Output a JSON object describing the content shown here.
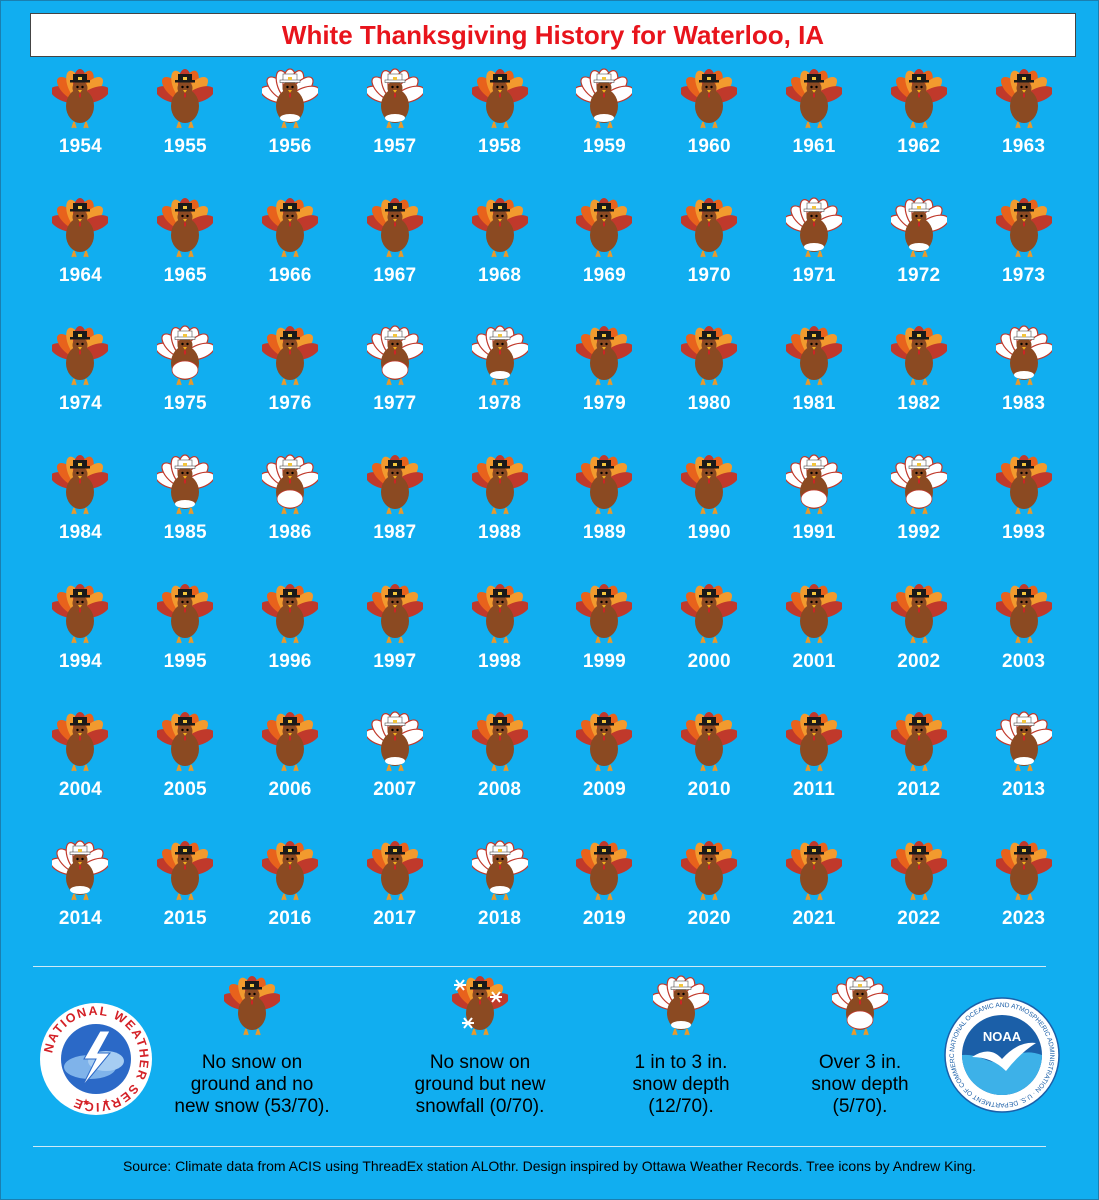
{
  "title": "White Thanksgiving History for Waterloo, IA",
  "years": [
    {
      "year": "1954",
      "category": "none"
    },
    {
      "year": "1955",
      "category": "none"
    },
    {
      "year": "1956",
      "category": "1to3"
    },
    {
      "year": "1957",
      "category": "1to3"
    },
    {
      "year": "1958",
      "category": "none"
    },
    {
      "year": "1959",
      "category": "1to3"
    },
    {
      "year": "1960",
      "category": "none"
    },
    {
      "year": "1961",
      "category": "none"
    },
    {
      "year": "1962",
      "category": "none"
    },
    {
      "year": "1963",
      "category": "none"
    },
    {
      "year": "1964",
      "category": "none"
    },
    {
      "year": "1965",
      "category": "none"
    },
    {
      "year": "1966",
      "category": "none"
    },
    {
      "year": "1967",
      "category": "none"
    },
    {
      "year": "1968",
      "category": "none"
    },
    {
      "year": "1969",
      "category": "none"
    },
    {
      "year": "1970",
      "category": "none"
    },
    {
      "year": "1971",
      "category": "1to3"
    },
    {
      "year": "1972",
      "category": "1to3"
    },
    {
      "year": "1973",
      "category": "none"
    },
    {
      "year": "1974",
      "category": "none"
    },
    {
      "year": "1975",
      "category": "over3"
    },
    {
      "year": "1976",
      "category": "none"
    },
    {
      "year": "1977",
      "category": "over3"
    },
    {
      "year": "1978",
      "category": "1to3"
    },
    {
      "year": "1979",
      "category": "none"
    },
    {
      "year": "1980",
      "category": "none"
    },
    {
      "year": "1981",
      "category": "none"
    },
    {
      "year": "1982",
      "category": "none"
    },
    {
      "year": "1983",
      "category": "1to3"
    },
    {
      "year": "1984",
      "category": "none"
    },
    {
      "year": "1985",
      "category": "1to3"
    },
    {
      "year": "1986",
      "category": "over3"
    },
    {
      "year": "1987",
      "category": "none"
    },
    {
      "year": "1988",
      "category": "none"
    },
    {
      "year": "1989",
      "category": "none"
    },
    {
      "year": "1990",
      "category": "none"
    },
    {
      "year": "1991",
      "category": "over3"
    },
    {
      "year": "1992",
      "category": "over3"
    },
    {
      "year": "1993",
      "category": "none"
    },
    {
      "year": "1994",
      "category": "none"
    },
    {
      "year": "1995",
      "category": "none"
    },
    {
      "year": "1996",
      "category": "none"
    },
    {
      "year": "1997",
      "category": "none"
    },
    {
      "year": "1998",
      "category": "none"
    },
    {
      "year": "1999",
      "category": "none"
    },
    {
      "year": "2000",
      "category": "none"
    },
    {
      "year": "2001",
      "category": "none"
    },
    {
      "year": "2002",
      "category": "none"
    },
    {
      "year": "2003",
      "category": "none"
    },
    {
      "year": "2004",
      "category": "none"
    },
    {
      "year": "2005",
      "category": "none"
    },
    {
      "year": "2006",
      "category": "none"
    },
    {
      "year": "2007",
      "category": "1to3"
    },
    {
      "year": "2008",
      "category": "none"
    },
    {
      "year": "2009",
      "category": "none"
    },
    {
      "year": "2010",
      "category": "none"
    },
    {
      "year": "2011",
      "category": "none"
    },
    {
      "year": "2012",
      "category": "none"
    },
    {
      "year": "2013",
      "category": "1to3"
    },
    {
      "year": "2014",
      "category": "1to3"
    },
    {
      "year": "2015",
      "category": "none"
    },
    {
      "year": "2016",
      "category": "none"
    },
    {
      "year": "2017",
      "category": "none"
    },
    {
      "year": "2018",
      "category": "1to3"
    },
    {
      "year": "2019",
      "category": "none"
    },
    {
      "year": "2020",
      "category": "none"
    },
    {
      "year": "2021",
      "category": "none"
    },
    {
      "year": "2022",
      "category": "none"
    },
    {
      "year": "2023",
      "category": "none"
    }
  ],
  "legend": [
    {
      "category": "none",
      "text": "No snow on\nground and no\nnew snow (53/70)."
    },
    {
      "category": "newsnow",
      "text": "No snow on\nground but new\nsnowfall (0/70)."
    },
    {
      "category": "1to3",
      "text": "1 in to 3 in.\nsnow depth\n(12/70)."
    },
    {
      "category": "over3",
      "text": "Over 3 in.\nsnow depth\n(5/70)."
    }
  ],
  "logos": {
    "nws": "NATIONAL WEATHER SERVICE",
    "noaa": "NOAA",
    "noaa_ring": "NATIONAL OCEANIC AND ATMOSPHERIC ADMINISTRATION · U.S. DEPARTMENT OF COMMERCE"
  },
  "source": "Source: Climate data from ACIS using ThreadEx station ALOthr. Design inspired by Ottawa Weather Records. Tree icons by Andrew King.",
  "colors": {
    "background": "#11aef0",
    "title": "#e8141c",
    "turkey_body": "#8b4a22",
    "feather_1": "#c0392b",
    "feather_2": "#e8621c",
    "feather_3": "#f29a2e"
  }
}
